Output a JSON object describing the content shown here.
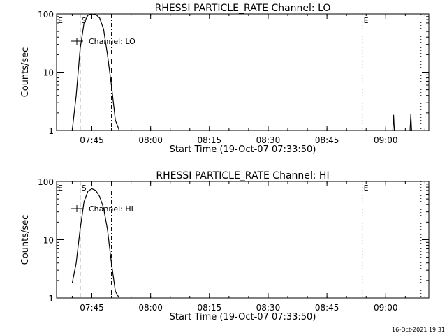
{
  "chart_data": [
    {
      "type": "line",
      "title": "RHESSI PARTICLE_RATE Channel: LO",
      "xlabel": "Start Time (19-Oct-07 07:33:50)",
      "ylabel": "Counts/sec",
      "yscale": "log",
      "ylim": [
        1,
        100
      ],
      "xlim": [
        "07:36",
        "09:11"
      ],
      "x_ticks": [
        "07:45",
        "08:00",
        "08:15",
        "08:30",
        "08:45",
        "09:00"
      ],
      "y_ticks": [
        "1",
        "10",
        "100"
      ],
      "legend": {
        "label": "Channel: LO",
        "position": "top-left"
      },
      "markers": [
        {
          "label": "E",
          "time": "07:36",
          "style": "dotted"
        },
        {
          "label": "S",
          "time": "07:42",
          "style": "dashed"
        },
        {
          "label": "",
          "time": "07:50",
          "style": "dash-dot"
        },
        {
          "label": "E",
          "time": "08:54",
          "style": "dotted"
        },
        {
          "label": "",
          "time": "09:09",
          "style": "dotted"
        }
      ],
      "series": [
        {
          "x": [
            "07:40",
            "07:41",
            "07:42",
            "07:43",
            "07:44",
            "07:45",
            "07:46",
            "07:47",
            "07:48",
            "07:49",
            "07:50",
            "07:51",
            "07:52"
          ],
          "y": [
            1,
            4,
            25,
            70,
            95,
            100,
            98,
            85,
            55,
            20,
            6,
            1.5,
            1
          ]
        },
        {
          "x": [
            "09:01.8",
            "09:02",
            "09:02.2"
          ],
          "y": [
            1,
            1.85,
            1
          ]
        },
        {
          "x": [
            "09:06.2",
            "09:06.4",
            "09:06.6"
          ],
          "y": [
            1,
            1.9,
            1
          ]
        }
      ]
    },
    {
      "type": "line",
      "title": "RHESSI PARTICLE_RATE Channel: HI",
      "xlabel": "Start Time (19-Oct-07 07:33:50)",
      "ylabel": "Counts/sec",
      "yscale": "log",
      "ylim": [
        1,
        100
      ],
      "xlim": [
        "07:36",
        "09:11"
      ],
      "x_ticks": [
        "07:45",
        "08:00",
        "08:15",
        "08:30",
        "08:45",
        "09:00"
      ],
      "y_ticks": [
        "1",
        "10",
        "100"
      ],
      "legend": {
        "label": "Channel: HI",
        "position": "top-left"
      },
      "markers": [
        {
          "label": "E",
          "time": "07:36",
          "style": "dotted"
        },
        {
          "label": "S",
          "time": "07:42",
          "style": "dashed"
        },
        {
          "label": "",
          "time": "07:50",
          "style": "dash-dot"
        },
        {
          "label": "E",
          "time": "08:54",
          "style": "dotted"
        },
        {
          "label": "",
          "time": "09:09",
          "style": "dotted"
        }
      ],
      "series": [
        {
          "x": [
            "07:40",
            "07:41",
            "07:42",
            "07:43",
            "07:44",
            "07:45",
            "07:46",
            "07:47",
            "07:48",
            "07:49",
            "07:50",
            "07:51",
            "07:52"
          ],
          "y": [
            1.8,
            4,
            15,
            45,
            68,
            75,
            70,
            55,
            35,
            15,
            4,
            1.3,
            1
          ]
        }
      ]
    }
  ],
  "footer": {
    "timestamp": "16-Oct-2021 19:31"
  }
}
